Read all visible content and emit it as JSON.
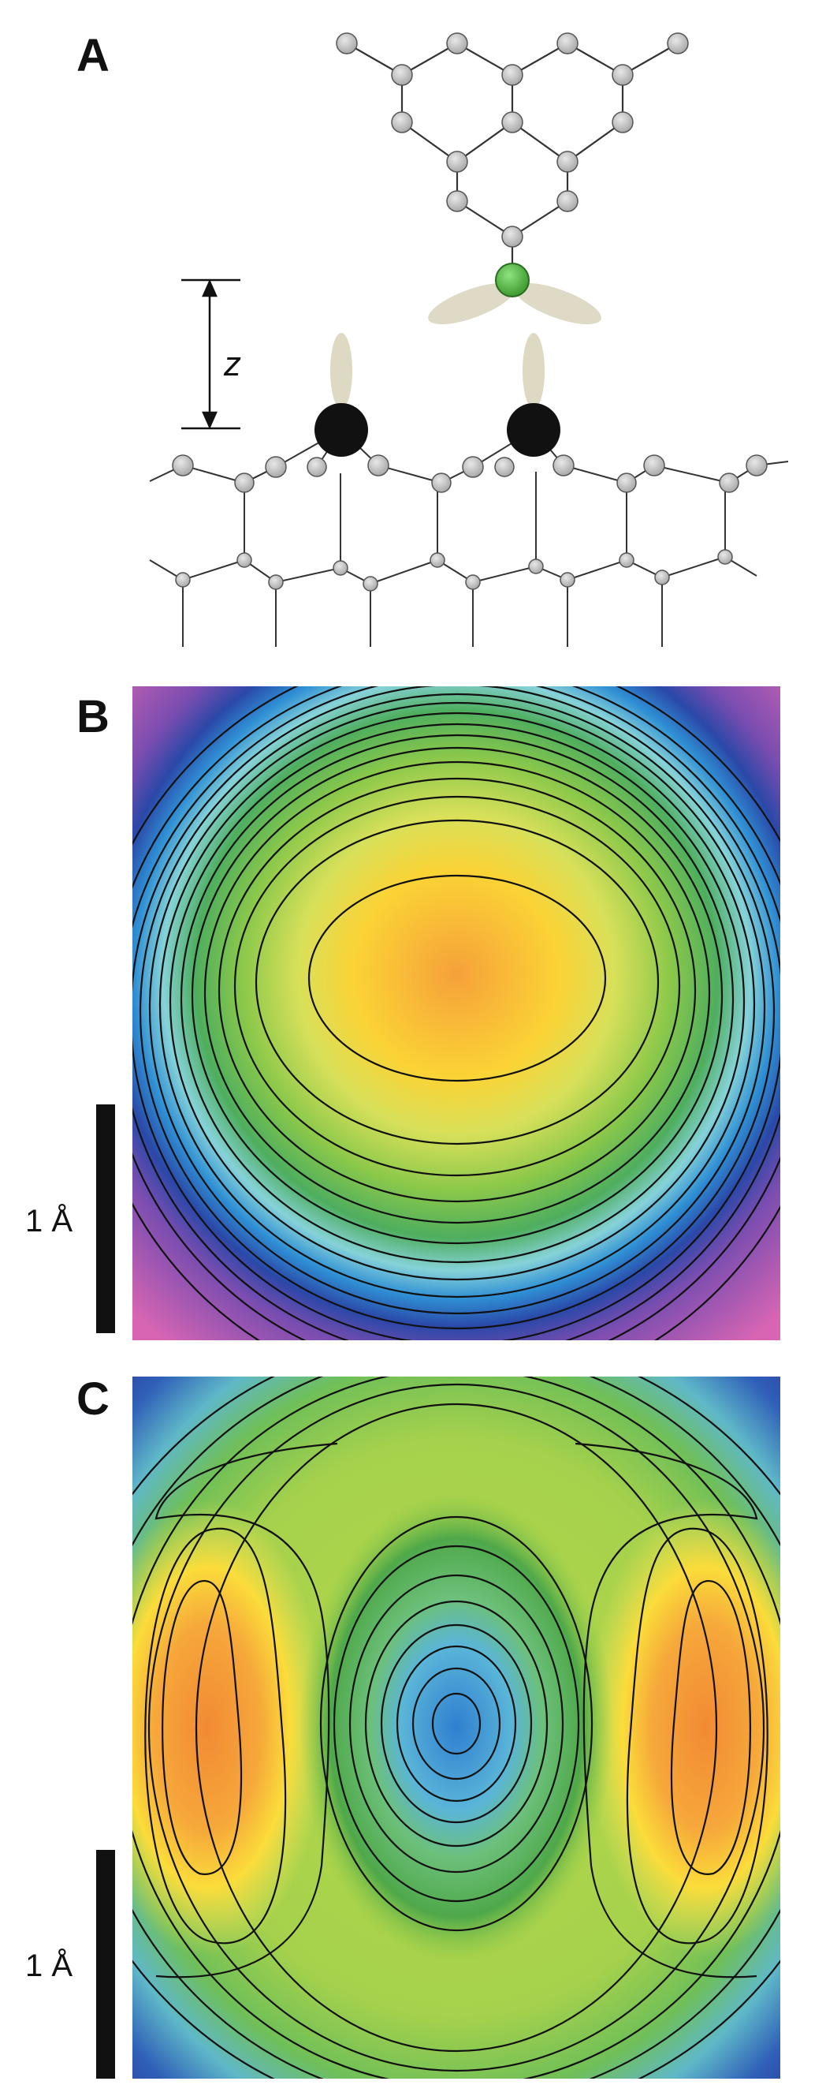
{
  "figure": {
    "panels": [
      {
        "id": "A",
        "label": "A",
        "z_label": "z"
      },
      {
        "id": "B",
        "label": "B",
        "scale_label": "1 Å"
      },
      {
        "id": "C",
        "label": "C",
        "scale_label": "1 Å"
      }
    ]
  },
  "colors": {
    "atom_gray": "#c4c4c4",
    "atom_black": "#111111",
    "atom_green": "#5cc34a",
    "orbital_lobe": "#ddd9c2",
    "bond": "#333333"
  },
  "icons": {
    "molecule": "pentacene-like-fragment-icon",
    "surface": "substrate-lattice-icon",
    "z_arrow": "double-arrow-icon"
  }
}
